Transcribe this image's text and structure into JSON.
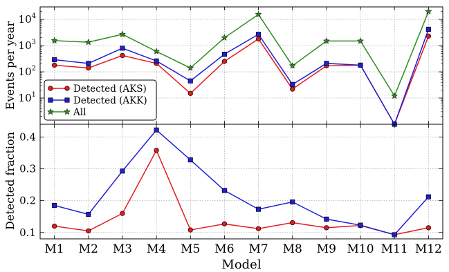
{
  "chart_data": [
    {
      "type": "line",
      "panel": "top",
      "ylabel": "Events per year",
      "yscale": "log",
      "ylim": [
        1,
        30000
      ],
      "yticks": [
        {
          "value": 10,
          "base": "10",
          "exp": "1"
        },
        {
          "value": 100,
          "base": "10",
          "exp": "2"
        },
        {
          "value": 1000,
          "base": "10",
          "exp": "3"
        },
        {
          "value": 10000,
          "base": "10",
          "exp": "4"
        }
      ],
      "grid": true,
      "legend_position": "lower-left",
      "categories": [
        "M1",
        "M2",
        "M3",
        "M4",
        "M5",
        "M6",
        "M7",
        "M8",
        "M9",
        "M10",
        "M11",
        "M12"
      ],
      "series": [
        {
          "name": "Detected (AKS)",
          "color": "#e41a1c",
          "marker": "circle",
          "values": [
            180,
            140,
            420,
            210,
            15,
            250,
            1800,
            22,
            170,
            180,
            1,
            2300
          ]
        },
        {
          "name": "Detected (AKK)",
          "color": "#1f1fd6",
          "marker": "square",
          "values": [
            290,
            210,
            800,
            260,
            45,
            470,
            2700,
            33,
            210,
            180,
            1,
            4200
          ]
        },
        {
          "name": "All",
          "color": "#2e8b1f",
          "marker": "star",
          "values": [
            1550,
            1350,
            2700,
            600,
            140,
            2000,
            15500,
            170,
            1500,
            1500,
            12,
            20000
          ]
        }
      ]
    },
    {
      "type": "line",
      "panel": "bottom",
      "xlabel": "Model",
      "ylabel": "Detected fraction",
      "ylim": [
        0.08,
        0.44
      ],
      "yticks": [
        "0.1",
        "0.2",
        "0.3",
        "0.4"
      ],
      "grid": true,
      "categories": [
        "M1",
        "M2",
        "M3",
        "M4",
        "M5",
        "M6",
        "M7",
        "M8",
        "M9",
        "M10",
        "M11",
        "M12"
      ],
      "series": [
        {
          "color": "#e41a1c",
          "marker": "circle",
          "values": [
            0.12,
            0.105,
            0.16,
            0.358,
            0.108,
            0.127,
            0.112,
            0.131,
            0.115,
            0.122,
            0.093,
            0.115
          ]
        },
        {
          "color": "#1f1fd6",
          "marker": "square",
          "values": [
            0.185,
            0.157,
            0.293,
            0.422,
            0.328,
            0.232,
            0.173,
            0.196,
            0.142,
            0.123,
            0.093,
            0.212
          ]
        }
      ]
    }
  ]
}
